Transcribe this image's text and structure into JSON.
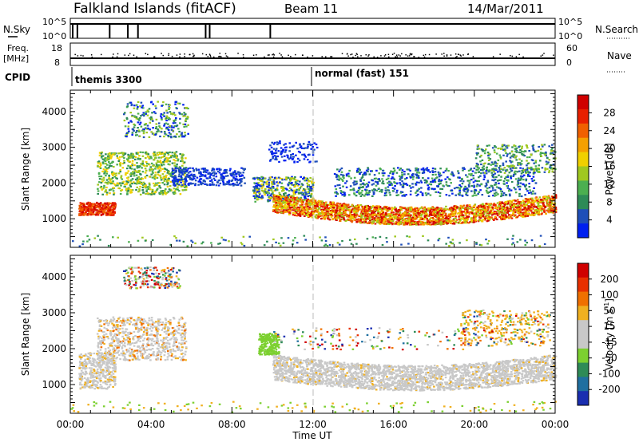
{
  "header": {
    "station": "Falkland Islands (fitACF)",
    "beam": "Beam 11",
    "date": "14/Mar/2011"
  },
  "top_panel": {
    "left_label": "N.Sky",
    "ticks_top": "10^5",
    "ticks_bottom": "10^0",
    "right_label": "N.Search",
    "right_ticks_top": "10^5",
    "right_ticks_bottom": "10^0"
  },
  "freq_panel": {
    "left_label_1": "Freq.",
    "left_label_2": "[MHz]",
    "left_tick_top": "18",
    "left_tick_bottom": "8",
    "right_label": "Nave",
    "right_tick_top": "60",
    "right_tick_bottom": "0"
  },
  "cpid": {
    "label": "CPID",
    "program_1": "themis 3300",
    "program_2": "normal (fast) 151"
  },
  "colors": {
    "power_scale": [
      "#0020f0",
      "#1f4fb8",
      "#2e8b57",
      "#4caf50",
      "#a0c820",
      "#f0d000",
      "#f5a000",
      "#f06000",
      "#e82000",
      "#d00000"
    ],
    "velocity_scale": [
      "#1a2eb0",
      "#1f6fa0",
      "#2e8b57",
      "#7cd030",
      "#c8c8c8",
      "#c8c8c8",
      "#f0b020",
      "#f07000",
      "#e83000",
      "#d00000"
    ]
  },
  "chart_data": [
    {
      "type": "heatmap",
      "name": "power",
      "ylabel": "Slant Range [km]",
      "yticks": [
        "1000",
        "2000",
        "3000",
        "4000"
      ],
      "ylim": [
        200,
        4600
      ],
      "xlim": [
        0,
        24
      ],
      "colorbar_label": "Power [dB]",
      "colorbar_ticks": [
        "4",
        "8",
        "12",
        "16",
        "20",
        "24",
        "28"
      ],
      "colorbar_range": [
        0,
        32
      ]
    },
    {
      "type": "heatmap",
      "name": "velocity",
      "ylabel": "Slant Range [km]",
      "yticks": [
        "1000",
        "2000",
        "3000",
        "4000"
      ],
      "ylim": [
        200,
        4600
      ],
      "xlim": [
        0,
        24
      ],
      "xlabel": "Time UT",
      "xticks": [
        "00:00",
        "04:00",
        "08:00",
        "12:00",
        "16:00",
        "20:00",
        "00:00"
      ],
      "colorbar_label": "Velocity [m s",
      "colorbar_label_sup": "-1",
      "colorbar_label_end": "]",
      "colorbar_ticks": [
        "200",
        "100",
        "50",
        "15",
        "-15",
        "-50",
        "-100",
        "-200"
      ]
    }
  ]
}
